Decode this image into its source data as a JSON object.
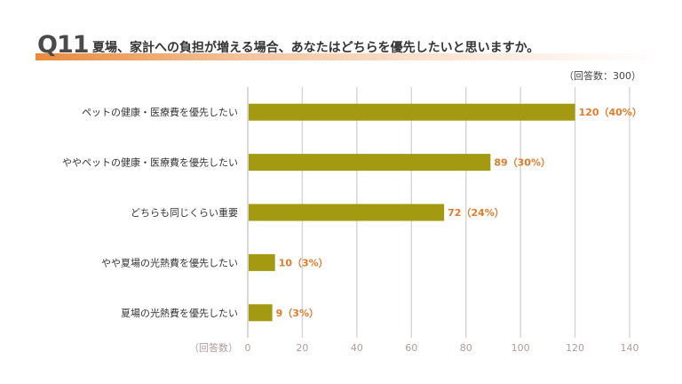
{
  "header": {
    "question_number": "Q11",
    "question_text": "夏場、家計への負担が増える場合、あなたはどちらを優先したいと思いますか。"
  },
  "respondents": "（回答数：300）",
  "colors": {
    "bar": "#a39a12",
    "value_label": "#e07b2a",
    "accent": "#e98a3c"
  },
  "chart_data": {
    "type": "bar",
    "orientation": "horizontal",
    "title": "",
    "xlabel": "（回答数）",
    "ylabel": "",
    "xlim": [
      0,
      140
    ],
    "x_ticks": [
      0,
      20,
      40,
      60,
      80,
      100,
      120,
      140
    ],
    "grid": true,
    "categories": [
      "ペットの健康・医療費を優先したい",
      "ややペットの健康・医療費を優先したい",
      "どちらも同じくらい重要",
      "やや夏場の光熱費を優先したい",
      "夏場の光熱費を優先したい"
    ],
    "values": [
      120,
      89,
      72,
      10,
      9
    ],
    "value_labels": [
      "120（40%）",
      "89（30%）",
      "72（24%）",
      "10（3%）",
      "9（3%）"
    ]
  }
}
